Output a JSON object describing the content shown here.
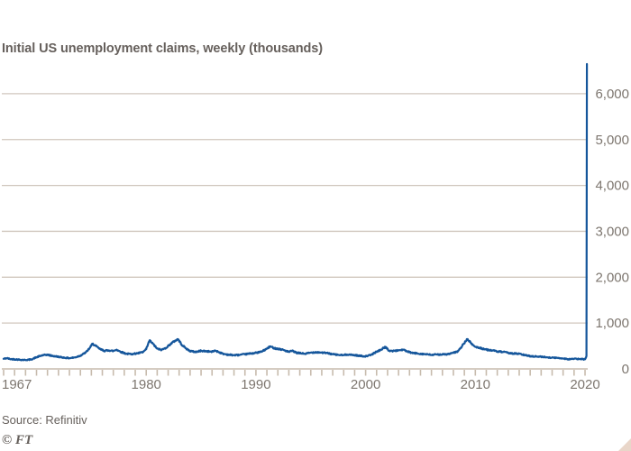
{
  "header": {
    "title": "Initial US unemployment claims, weekly (thousands)"
  },
  "footer": {
    "source": "Source: Refinitiv",
    "logo": "© FT"
  },
  "colors": {
    "background": "#ffffff",
    "line": "#15569b",
    "grid": "#d0c7bd",
    "axis": "#c7bbad",
    "title_text": "#66605c",
    "tick_text": "#7d766f",
    "corner_triangle": "#e9d6c9"
  },
  "chart_data": {
    "type": "line",
    "title": "Initial US unemployment claims, weekly (thousands)",
    "xlabel": "",
    "ylabel": "",
    "x_range": [
      1967,
      2020.2
    ],
    "ylim": [
      0,
      6800
    ],
    "grid": "horizontal",
    "legend": "none",
    "y_axis_side": "right",
    "minor_x_tick_every_years": 1,
    "yticks": [
      {
        "value": 0,
        "label": "0"
      },
      {
        "value": 1000,
        "label": "1,000"
      },
      {
        "value": 2000,
        "label": "2,000"
      },
      {
        "value": 3000,
        "label": "3,000"
      },
      {
        "value": 4000,
        "label": "4,000"
      },
      {
        "value": 5000,
        "label": "5,000"
      },
      {
        "value": 6000,
        "label": "6,000"
      }
    ],
    "xticks": [
      {
        "year": 1967,
        "label": "1967"
      },
      {
        "year": 1980,
        "label": "1980"
      },
      {
        "year": 1990,
        "label": "1990"
      },
      {
        "year": 2000,
        "label": "2000"
      },
      {
        "year": 2010,
        "label": "2010"
      },
      {
        "year": 2020,
        "label": "2020"
      }
    ],
    "weekly_noise": 13,
    "series": [
      {
        "name": "Initial US unemployment claims (thousands, weekly)",
        "color": "#15569b",
        "points": [
          [
            1967.0,
            220
          ],
          [
            1967.3,
            235
          ],
          [
            1967.6,
            215
          ],
          [
            1968.0,
            210
          ],
          [
            1968.5,
            200
          ],
          [
            1969.0,
            195
          ],
          [
            1969.5,
            205
          ],
          [
            1970.0,
            255
          ],
          [
            1970.5,
            295
          ],
          [
            1971.0,
            310
          ],
          [
            1971.4,
            285
          ],
          [
            1972.0,
            265
          ],
          [
            1972.5,
            245
          ],
          [
            1973.0,
            235
          ],
          [
            1973.5,
            250
          ],
          [
            1974.0,
            290
          ],
          [
            1974.5,
            360
          ],
          [
            1974.9,
            470
          ],
          [
            1975.1,
            550
          ],
          [
            1975.4,
            500
          ],
          [
            1975.8,
            430
          ],
          [
            1976.2,
            395
          ],
          [
            1976.6,
            405
          ],
          [
            1977.0,
            390
          ],
          [
            1977.3,
            420
          ],
          [
            1977.7,
            370
          ],
          [
            1978.2,
            330
          ],
          [
            1978.7,
            325
          ],
          [
            1979.2,
            340
          ],
          [
            1979.7,
            365
          ],
          [
            1980.0,
            430
          ],
          [
            1980.3,
            620
          ],
          [
            1980.6,
            550
          ],
          [
            1981.0,
            440
          ],
          [
            1981.4,
            415
          ],
          [
            1981.8,
            460
          ],
          [
            1982.2,
            540
          ],
          [
            1982.6,
            610
          ],
          [
            1982.9,
            650
          ],
          [
            1983.2,
            540
          ],
          [
            1983.6,
            450
          ],
          [
            1984.0,
            390
          ],
          [
            1984.5,
            370
          ],
          [
            1985.0,
            395
          ],
          [
            1985.5,
            385
          ],
          [
            1986.0,
            375
          ],
          [
            1986.3,
            400
          ],
          [
            1986.7,
            360
          ],
          [
            1987.0,
            330
          ],
          [
            1987.5,
            310
          ],
          [
            1988.0,
            300
          ],
          [
            1988.5,
            305
          ],
          [
            1989.0,
            320
          ],
          [
            1989.5,
            335
          ],
          [
            1990.0,
            350
          ],
          [
            1990.5,
            375
          ],
          [
            1991.0,
            440
          ],
          [
            1991.3,
            490
          ],
          [
            1991.7,
            450
          ],
          [
            1992.0,
            440
          ],
          [
            1992.5,
            415
          ],
          [
            1993.0,
            370
          ],
          [
            1993.3,
            395
          ],
          [
            1993.7,
            350
          ],
          [
            1994.0,
            345
          ],
          [
            1994.5,
            330
          ],
          [
            1995.0,
            355
          ],
          [
            1995.5,
            365
          ],
          [
            1996.0,
            355
          ],
          [
            1996.5,
            345
          ],
          [
            1997.0,
            320
          ],
          [
            1997.5,
            305
          ],
          [
            1998.0,
            300
          ],
          [
            1998.3,
            315
          ],
          [
            1998.7,
            305
          ],
          [
            1999.0,
            300
          ],
          [
            1999.5,
            285
          ],
          [
            2000.0,
            275
          ],
          [
            2000.5,
            305
          ],
          [
            2001.0,
            375
          ],
          [
            2001.4,
            420
          ],
          [
            2001.8,
            480
          ],
          [
            2002.1,
            400
          ],
          [
            2002.5,
            390
          ],
          [
            2003.0,
            405
          ],
          [
            2003.4,
            420
          ],
          [
            2003.8,
            380
          ],
          [
            2004.2,
            350
          ],
          [
            2004.6,
            340
          ],
          [
            2005.0,
            330
          ],
          [
            2005.5,
            320
          ],
          [
            2006.0,
            305
          ],
          [
            2006.5,
            315
          ],
          [
            2007.0,
            315
          ],
          [
            2007.5,
            320
          ],
          [
            2008.0,
            350
          ],
          [
            2008.4,
            380
          ],
          [
            2008.8,
            500
          ],
          [
            2009.1,
            600
          ],
          [
            2009.3,
            650
          ],
          [
            2009.6,
            560
          ],
          [
            2010.0,
            480
          ],
          [
            2010.4,
            460
          ],
          [
            2011.0,
            420
          ],
          [
            2011.5,
            405
          ],
          [
            2012.0,
            380
          ],
          [
            2012.5,
            370
          ],
          [
            2013.0,
            350
          ],
          [
            2013.5,
            335
          ],
          [
            2014.0,
            330
          ],
          [
            2014.5,
            300
          ],
          [
            2015.0,
            280
          ],
          [
            2015.5,
            270
          ],
          [
            2016.0,
            265
          ],
          [
            2016.5,
            255
          ],
          [
            2017.0,
            245
          ],
          [
            2017.5,
            240
          ],
          [
            2018.0,
            230
          ],
          [
            2018.5,
            212
          ],
          [
            2019.0,
            220
          ],
          [
            2019.5,
            215
          ],
          [
            2020.0,
            210
          ],
          [
            2020.13,
            282
          ],
          [
            2020.15,
            3307
          ],
          [
            2020.17,
            6648
          ]
        ]
      }
    ]
  }
}
